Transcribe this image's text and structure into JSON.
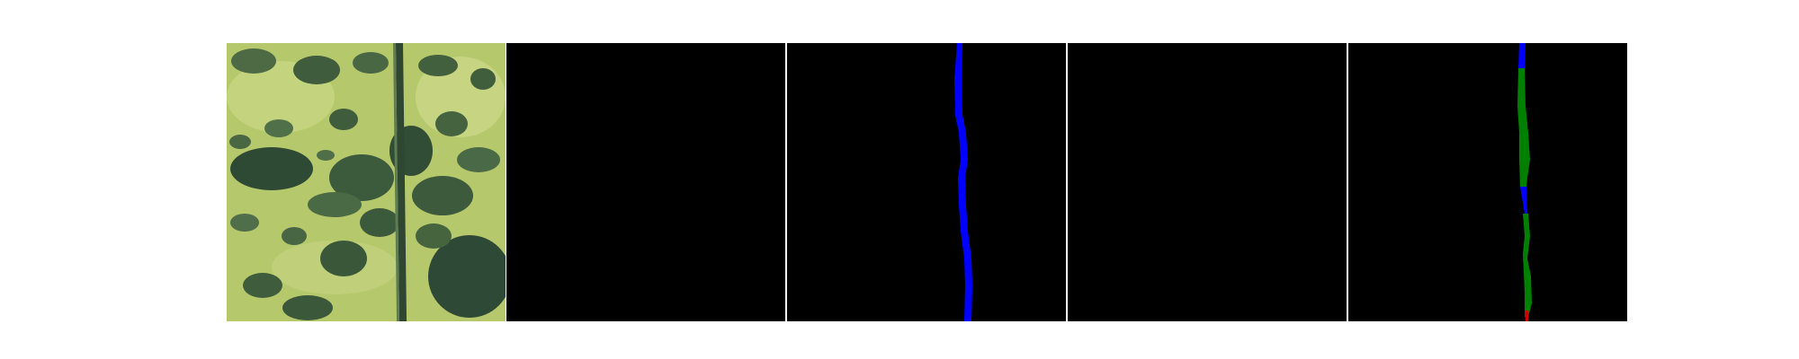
{
  "figure": {
    "background_color": "#ffffff",
    "panels": [
      {
        "id": "aerial-image",
        "kind": "photo",
        "description_colors": [
          "#b5c76a",
          "#3f5a3a",
          "#2f4a36"
        ]
      },
      {
        "id": "mask-empty-1",
        "kind": "mask",
        "fill": "#000000"
      },
      {
        "id": "mask-blue-road",
        "kind": "mask",
        "fill": "#000000",
        "stroke": "#0000ff"
      },
      {
        "id": "mask-empty-2",
        "kind": "mask",
        "fill": "#000000"
      },
      {
        "id": "mask-comparison",
        "kind": "mask",
        "fill": "#000000",
        "colors": [
          "#0000ff",
          "#008000",
          "#ff0000"
        ]
      }
    ]
  }
}
